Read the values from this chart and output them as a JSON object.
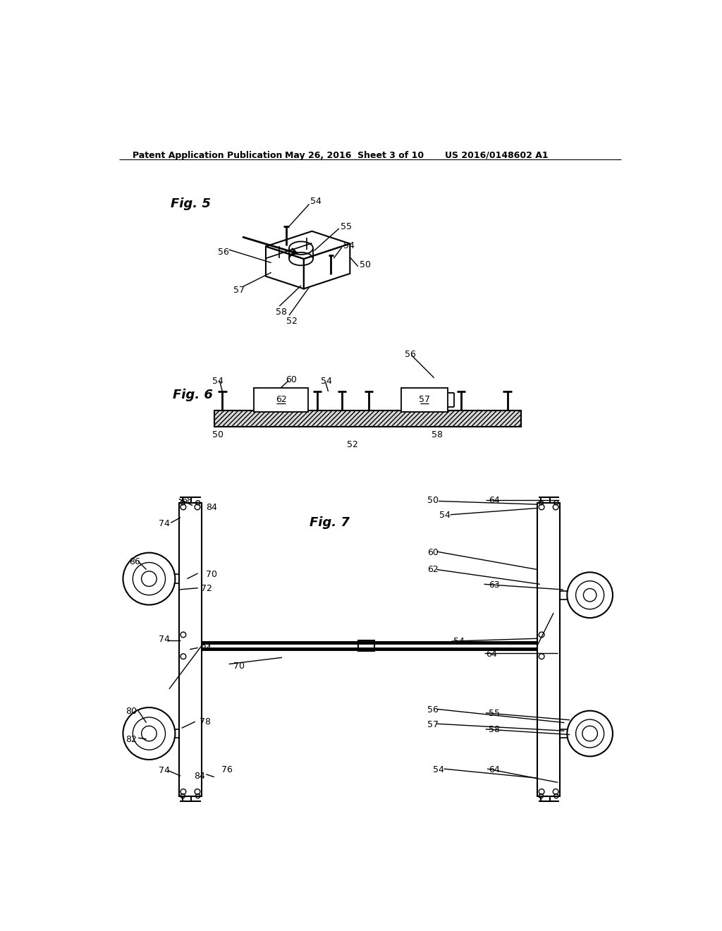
{
  "bg_color": "#ffffff",
  "header_left": "Patent Application Publication",
  "header_mid": "May 26, 2016  Sheet 3 of 10",
  "header_right": "US 2016/0148602 A1",
  "fig5_label": "Fig. 5",
  "fig6_label": "Fig. 6",
  "fig7_label": "Fig. 7"
}
